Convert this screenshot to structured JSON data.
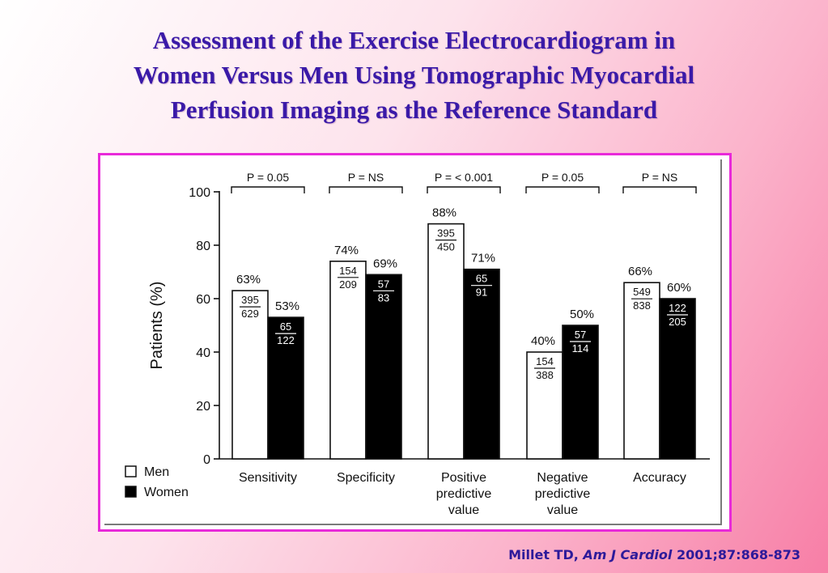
{
  "slide": {
    "title_lines": [
      "Assessment of the Exercise Electrocardiogram  in",
      "Women Versus Men Using  Tomographic Myocardial",
      "Perfusion Imaging as the Reference Standard"
    ],
    "citation": {
      "author": "Millet TD,",
      "journal": "Am J Cardiol",
      "ref": "2001;87:868-873"
    }
  },
  "colors": {
    "title": "#3a1aa8",
    "frame_border": "#e82ad9",
    "men_bar": "#ffffff",
    "women_bar": "#000000",
    "background_start": "#ffffff",
    "background_end": "#f77ea6"
  },
  "chart_data": {
    "type": "bar",
    "ylabel": "Patients (%)",
    "ylim": [
      0,
      100
    ],
    "yticks": [
      "0",
      "20",
      "40",
      "60",
      "80",
      "100"
    ],
    "categories": [
      [
        "Sensitivity"
      ],
      [
        "Specificity"
      ],
      [
        "Positive",
        "predictive",
        "value"
      ],
      [
        "Negative",
        "predictive",
        "value"
      ],
      [
        "Accuracy"
      ]
    ],
    "p_values": [
      "P = 0.05",
      "P = NS",
      "P = < 0.001",
      "P = 0.05",
      "P = NS"
    ],
    "legend": {
      "position": "bottom-left",
      "entries": [
        "Men",
        "Women"
      ]
    },
    "series": [
      {
        "name": "Men",
        "values": [
          63,
          74,
          88,
          40,
          66
        ],
        "labels": [
          "63%",
          "74%",
          "88%",
          "40%",
          "66%"
        ],
        "fractions": [
          [
            "395",
            "629"
          ],
          [
            "154",
            "209"
          ],
          [
            "395",
            "450"
          ],
          [
            "154",
            "388"
          ],
          [
            "549",
            "838"
          ]
        ]
      },
      {
        "name": "Women",
        "values": [
          53,
          69,
          71,
          50,
          60
        ],
        "labels": [
          "53%",
          "69%",
          "71%",
          "50%",
          "60%"
        ],
        "fractions": [
          [
            "65",
            "122"
          ],
          [
            "57",
            "83"
          ],
          [
            "65",
            "91"
          ],
          [
            "57",
            "114"
          ],
          [
            "122",
            "205"
          ]
        ]
      }
    ]
  }
}
